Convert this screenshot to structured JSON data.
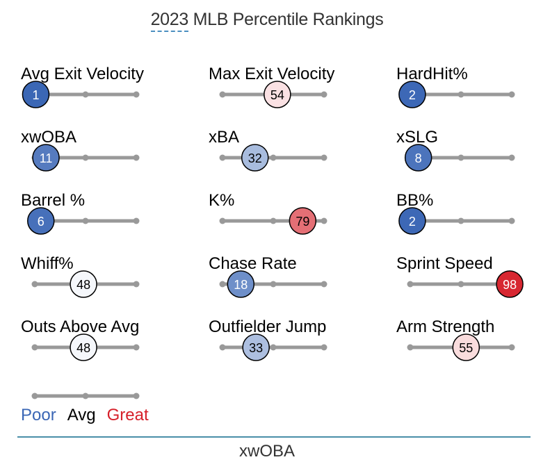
{
  "title": {
    "year": "2023",
    "rest": "MLB Percentile Rankings"
  },
  "chart_data": {
    "type": "percentile-slider",
    "title": "2023 MLB Percentile Rankings",
    "scale": [
      0,
      100
    ],
    "metrics": [
      {
        "label": "Avg Exit Velocity",
        "value": 1
      },
      {
        "label": "Max Exit Velocity",
        "value": 54
      },
      {
        "label": "HardHit%",
        "value": 2
      },
      {
        "label": "xwOBA",
        "value": 11
      },
      {
        "label": "xBA",
        "value": 32
      },
      {
        "label": "xSLG",
        "value": 8
      },
      {
        "label": "Barrel %",
        "value": 6
      },
      {
        "label": "K%",
        "value": 79
      },
      {
        "label": "BB%",
        "value": 2
      },
      {
        "label": "Whiff%",
        "value": 48
      },
      {
        "label": "Chase Rate",
        "value": 18
      },
      {
        "label": "Sprint Speed",
        "value": 98
      },
      {
        "label": "Outs Above Avg",
        "value": 48
      },
      {
        "label": "Outfielder Jump",
        "value": 33
      },
      {
        "label": "Arm Strength",
        "value": 55
      }
    ],
    "legend": {
      "poor": "Poor",
      "avg": "Avg",
      "great": "Great"
    },
    "colors": {
      "poor": "#3a66b5",
      "great": "#d6202a",
      "neutral": "#ffffff",
      "track": "#999999"
    }
  },
  "footer": "xwOBA"
}
